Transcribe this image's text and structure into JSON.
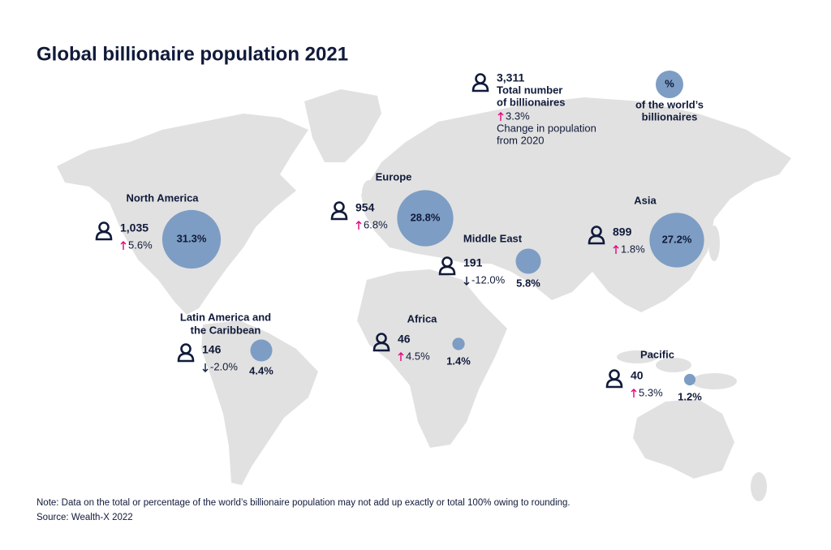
{
  "title": "Global billionaire population 2021",
  "legend": {
    "count": "3,311",
    "count_label": [
      "Total number",
      "of billionaires"
    ],
    "change": "3.3%",
    "change_label": [
      "Change in population",
      "from 2020"
    ],
    "share_symbol": "%",
    "share_label": [
      "of the world’s",
      "billionaires"
    ]
  },
  "regions": [
    {
      "name": [
        "North America"
      ],
      "count": "1,035",
      "change": "5.6%",
      "direction": "up",
      "share": 31.3,
      "share_label": "31.3%"
    },
    {
      "name": [
        "Europe"
      ],
      "count": "954",
      "change": "6.8%",
      "direction": "up",
      "share": 28.8,
      "share_label": "28.8%"
    },
    {
      "name": [
        "Middle East"
      ],
      "count": "191",
      "change": "-12.0%",
      "direction": "down",
      "share": 5.8,
      "share_label": "5.8%"
    },
    {
      "name": [
        "Asia"
      ],
      "count": "899",
      "change": "1.8%",
      "direction": "up",
      "share": 27.2,
      "share_label": "27.2%"
    },
    {
      "name": [
        "Latin America and",
        "the Caribbean"
      ],
      "count": "146",
      "change": "-2.0%",
      "direction": "down",
      "share": 4.4,
      "share_label": "4.4%"
    },
    {
      "name": [
        "Africa"
      ],
      "count": "46",
      "change": "4.5%",
      "direction": "up",
      "share": 1.4,
      "share_label": "1.4%"
    },
    {
      "name": [
        "Pacific"
      ],
      "count": "40",
      "change": "5.3%",
      "direction": "up",
      "share": 1.2,
      "share_label": "1.2%"
    }
  ],
  "note": "Note: Data on the total or percentage of the world’s billionaire population may not add up exactly or total 100% owing to rounding.",
  "source": "Source: Wealth-X 2022"
}
